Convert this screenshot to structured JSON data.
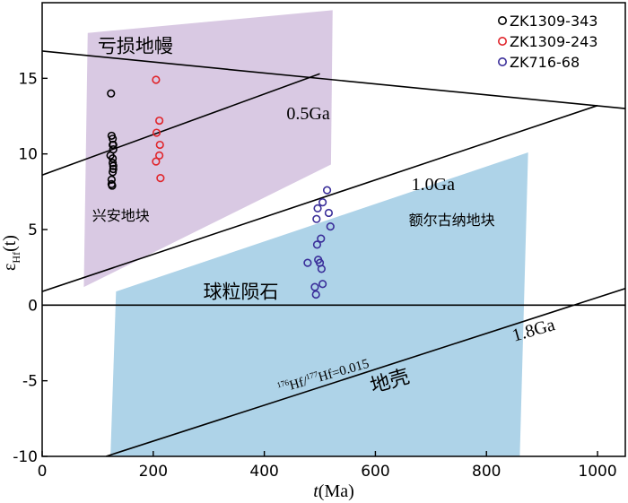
{
  "chart_data": {
    "type": "scatter",
    "title": "",
    "xlabel_main": "t",
    "xlabel_unit": "(Ma)",
    "ylabel_main": "ε",
    "ylabel_sub": "Hf",
    "ylabel_arg": "(t)",
    "xlim": [
      0,
      1050
    ],
    "ylim": [
      -10,
      20
    ],
    "xticks": [
      0,
      200,
      400,
      600,
      800,
      1000
    ],
    "yticks": [
      -10,
      -5,
      0,
      5,
      10,
      15
    ],
    "legend_position": "top-right",
    "colors": {
      "purple_field": "#d9c9e3",
      "blue_field": "#aed3e8",
      "black": "#000000",
      "red": "#e0252b",
      "blue": "#3b2f9a"
    },
    "fields": [
      {
        "name": "purple-field",
        "label": "兴安地块",
        "color": "#d9c9e3",
        "polygon": [
          [
            82,
            18
          ],
          [
            523,
            19.5
          ],
          [
            520,
            9.3
          ],
          [
            75,
            1.2
          ]
        ],
        "label_at": [
          90,
          5.6
        ]
      },
      {
        "name": "blue-field",
        "label": "额尔古纳地块",
        "color": "#aed3e8",
        "polygon": [
          [
            133,
            0.9
          ],
          [
            875,
            10.1
          ],
          [
            860,
            -10
          ],
          [
            123,
            -10
          ]
        ],
        "label_at": [
          660,
          5.3
        ]
      }
    ],
    "reference_lines": [
      {
        "name": "depleted-mantle-line",
        "label": "亏损地幔",
        "points": [
          [
            0,
            16.8
          ],
          [
            1050,
            13.0
          ]
        ],
        "label_at": [
          100,
          16.7
        ],
        "label_angle": 0,
        "label_size": 21
      },
      {
        "name": "line-0.5Ga",
        "label": "0.5Ga",
        "points": [
          [
            0,
            8.6
          ],
          [
            500,
            15.3
          ]
        ],
        "label_at": [
          440,
          12.3
        ],
        "label_angle": 0,
        "label_size": 20
      },
      {
        "name": "line-1.0Ga",
        "label": "1.0Ga",
        "points": [
          [
            0,
            0.9
          ],
          [
            1000,
            13.2
          ]
        ],
        "label_at": [
          665,
          7.6
        ],
        "label_angle": 0,
        "label_size": 20
      },
      {
        "name": "chondrite-line",
        "label": "球粒陨石",
        "points": [
          [
            0,
            0
          ],
          [
            1050,
            0
          ]
        ],
        "label_at": [
          290,
          0.45
        ],
        "label_angle": 0,
        "label_size": 21
      },
      {
        "name": "line-1.8Ga",
        "label": "1.8Ga",
        "points": [
          [
            115,
            -10
          ],
          [
            1050,
            1.1
          ]
        ],
        "label_at": [
          850,
          -2.4
        ],
        "label_angle": -16,
        "label_size": 20
      },
      {
        "name": "crust-label-line",
        "label": "地壳",
        "points": [],
        "label_at": [
          595,
          -5.8
        ],
        "label_angle": -16,
        "label_size": 22
      }
    ],
    "annotations": [
      {
        "name": "hf-ratio-annotation",
        "text": "Hf/",
        "sup1": "176",
        "sup2": "177",
        "tail": "Hf=0.015",
        "at": [
          590,
          -4.1
        ],
        "angle": -16
      }
    ],
    "series": [
      {
        "name": "ZK1309-343",
        "color": "#000000",
        "x": [
          124,
          125,
          127,
          127,
          128,
          128,
          123,
          127,
          127,
          128,
          128,
          127,
          125,
          125,
          126
        ],
        "y": [
          14.0,
          11.2,
          11.0,
          10.6,
          10.6,
          10.3,
          9.9,
          9.7,
          9.4,
          9.2,
          9.0,
          8.8,
          8.3,
          8.0,
          7.9
        ]
      },
      {
        "name": "ZK1309-243",
        "color": "#e0252b",
        "x": [
          205,
          211,
          206,
          212,
          211,
          205,
          213
        ],
        "y": [
          14.9,
          12.2,
          11.4,
          10.6,
          9.9,
          9.5,
          8.4
        ]
      },
      {
        "name": "ZK716-68",
        "color": "#3b2f9a",
        "x": [
          513,
          505,
          496,
          516,
          494,
          519,
          502,
          495,
          478,
          497,
          500,
          503,
          505,
          491,
          493
        ],
        "y": [
          7.6,
          6.8,
          6.4,
          6.1,
          5.7,
          5.2,
          4.4,
          4.0,
          2.8,
          3.0,
          2.8,
          2.4,
          1.4,
          1.2,
          0.7
        ]
      }
    ]
  }
}
